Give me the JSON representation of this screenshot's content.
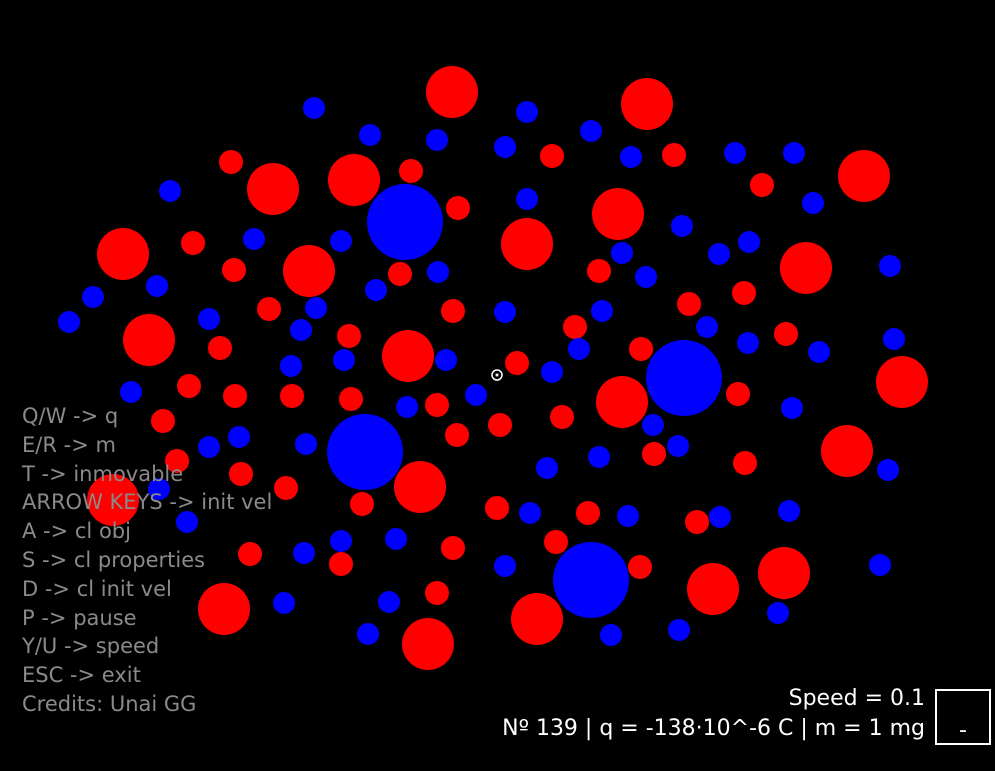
{
  "help_lines": [
    "Q/W -> q",
    "E/R -> m",
    "T -> inmovable",
    "ARROW KEYS -> init vel",
    "A -> cl obj",
    "S -> cl properties",
    "D -> cl init vel",
    "P -> pause",
    "Y/U -> speed",
    "ESC -> exit",
    "Credits: Unai GG"
  ],
  "speed_text": "Speed = 0.1",
  "status_text": "Nº 139 | q = -138·10^-6 C | m = 1 mg",
  "box_symbol": "-",
  "colors": {
    "positive": "#ff0000",
    "negative": "#0000ff",
    "background": "#000000",
    "help_text": "#8a8a8a"
  },
  "cursor_icon": "target-cursor-icon"
}
